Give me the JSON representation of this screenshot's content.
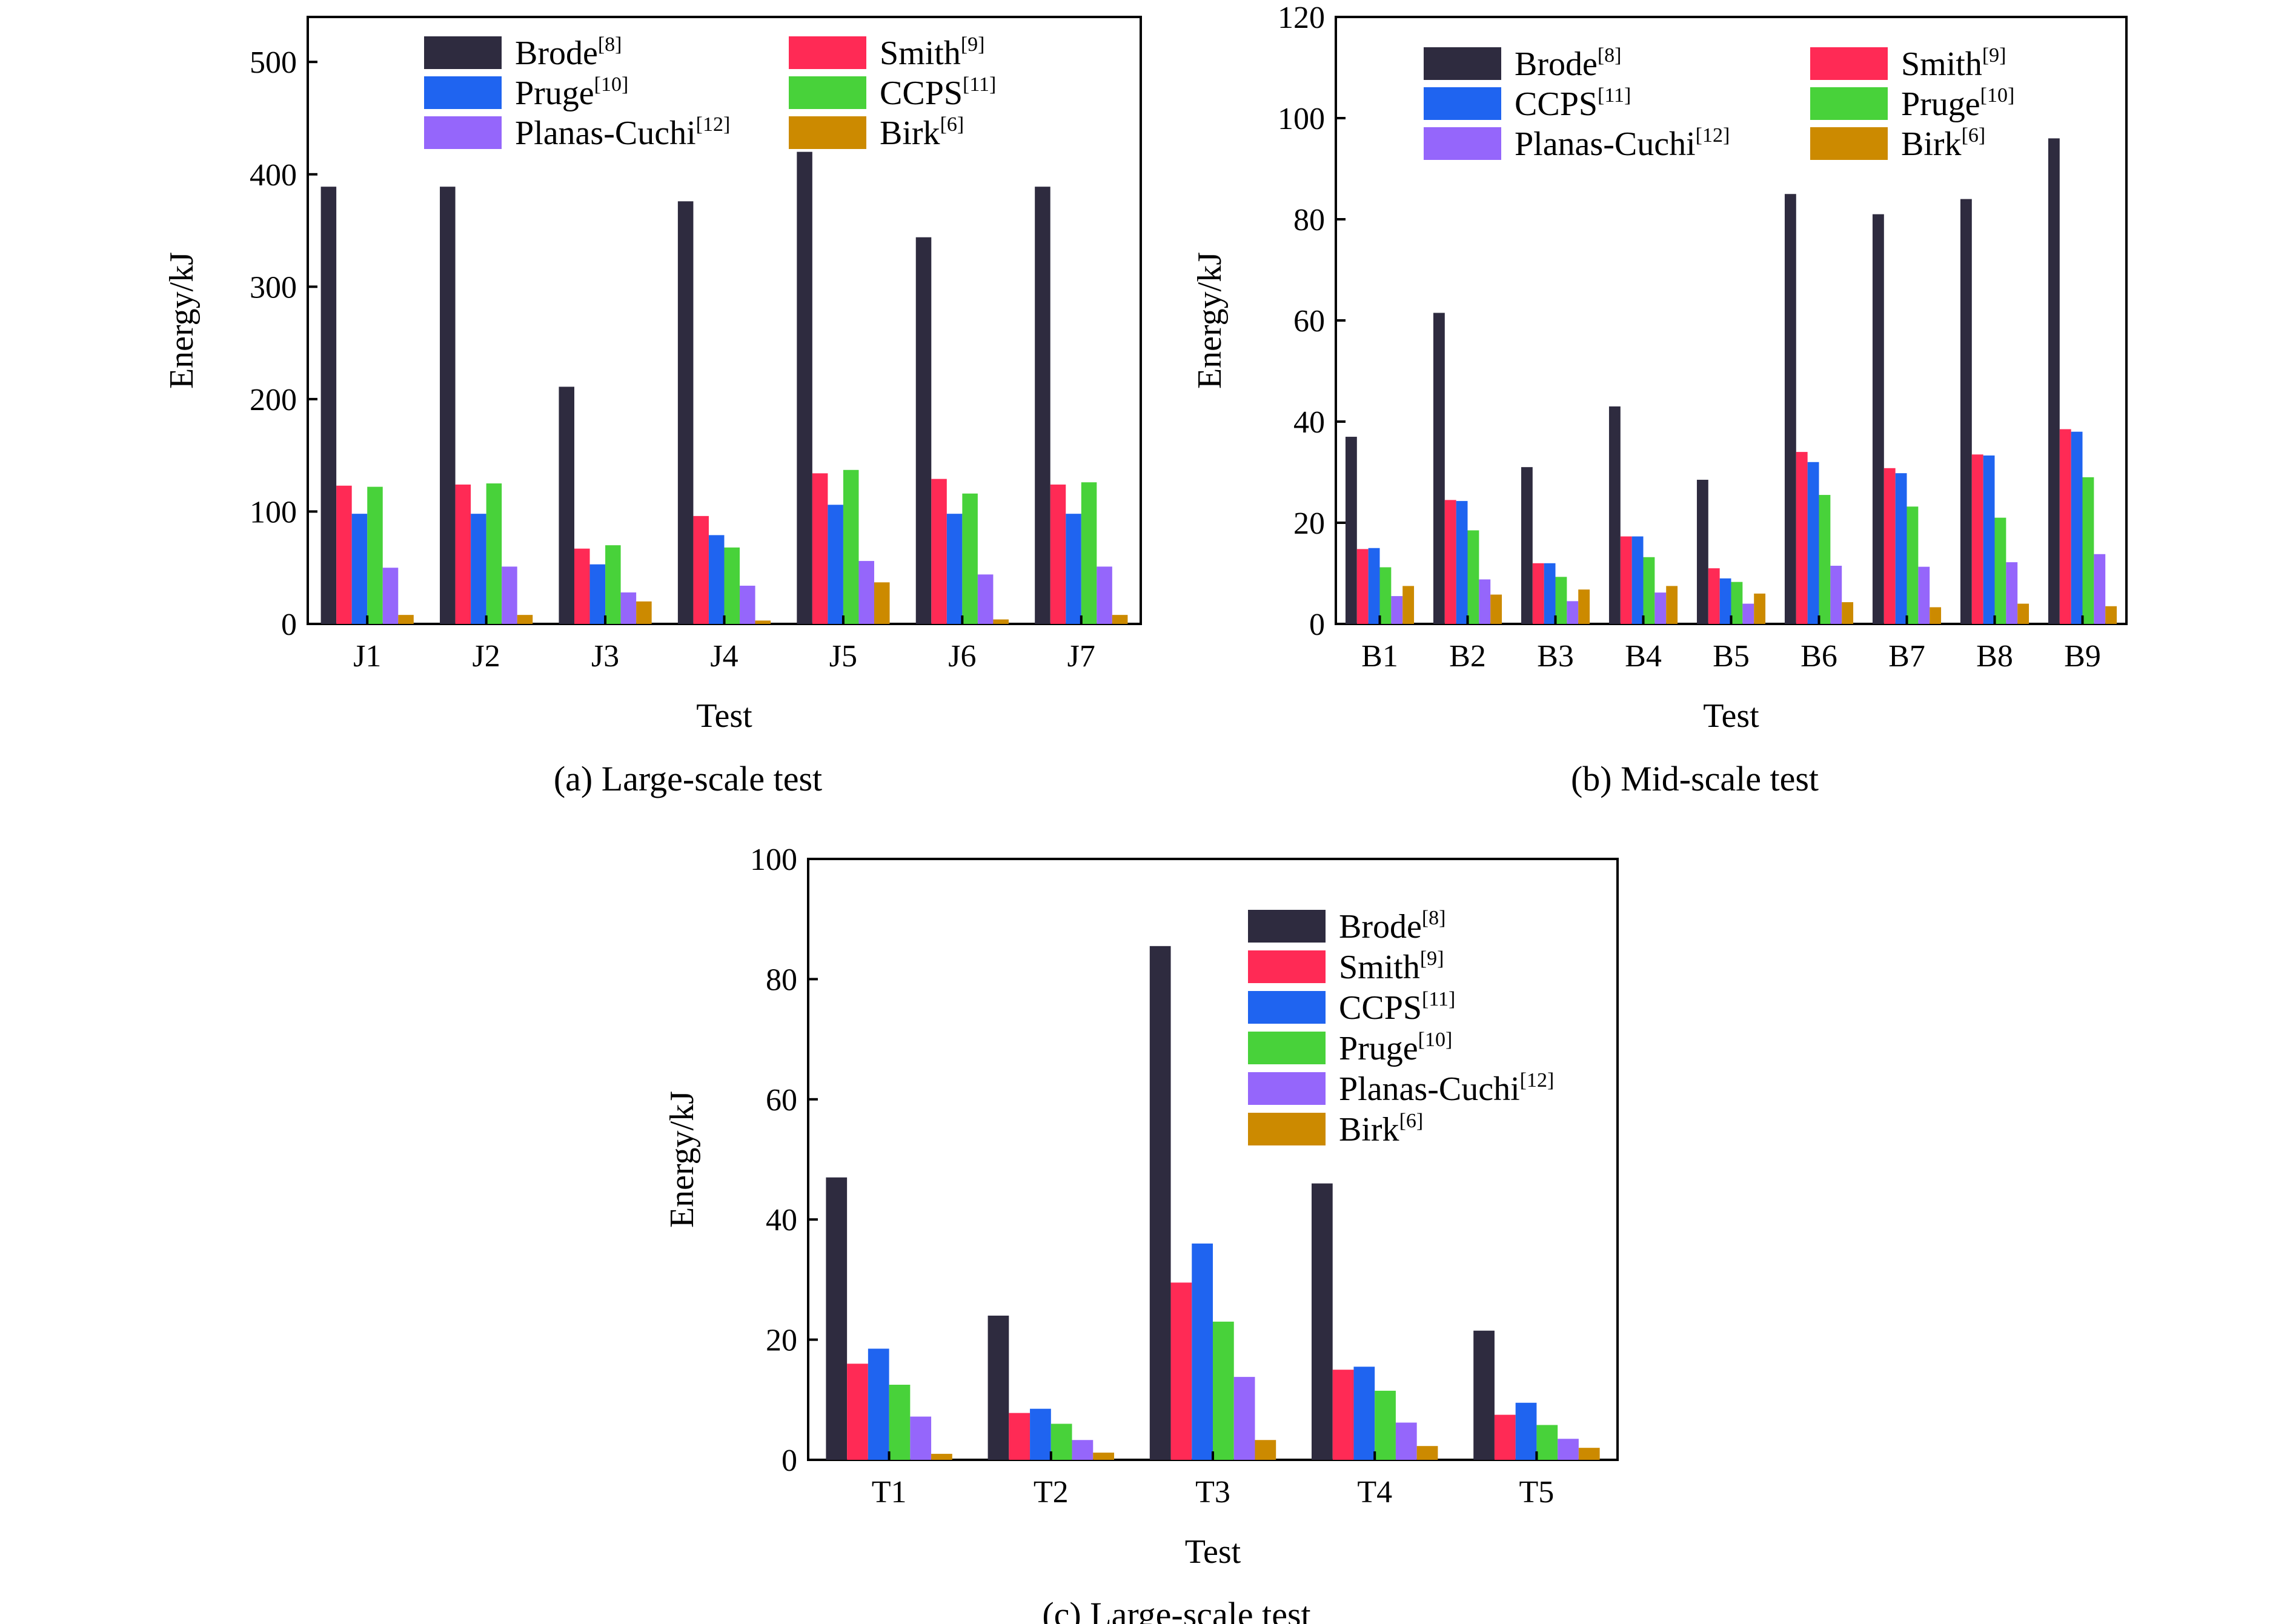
{
  "chart_data": [
    {
      "id": "a",
      "type": "bar",
      "caption": "(a) Large-scale test",
      "xlabel": "Test",
      "ylabel": "Energy/kJ",
      "ylim": [
        0,
        540
      ],
      "yticks": [
        0,
        100,
        200,
        300,
        400,
        500
      ],
      "categories": [
        "J1",
        "J2",
        "J3",
        "J4",
        "J5",
        "J6",
        "J7"
      ],
      "legend": {
        "columns": 2,
        "placement": "top-right",
        "order": [
          "Brode",
          "Smith",
          "Pruge",
          "CCPS",
          "Planas-Cuchi",
          "Birk"
        ]
      },
      "series": [
        {
          "name": "Brode",
          "ref": "[8]",
          "color": "#2e2b3f",
          "values": [
            389,
            389,
            211,
            376,
            420,
            344,
            389
          ]
        },
        {
          "name": "Smith",
          "ref": "[9]",
          "color": "#ff2a55",
          "values": [
            123,
            124,
            67,
            96,
            134,
            129,
            124
          ]
        },
        {
          "name": "Pruge",
          "ref": "[10]",
          "color": "#1f64f0",
          "values": [
            98,
            98,
            53,
            79,
            106,
            98,
            98
          ]
        },
        {
          "name": "CCPS",
          "ref": "[11]",
          "color": "#48d23a",
          "values": [
            122,
            125,
            70,
            68,
            137,
            116,
            126
          ]
        },
        {
          "name": "Planas-Cuchi",
          "ref": "[12]",
          "color": "#9566fb",
          "values": [
            50,
            51,
            28,
            34,
            56,
            44,
            51
          ]
        },
        {
          "name": "Birk",
          "ref": "[6]",
          "color": "#cc8a00",
          "values": [
            8,
            8,
            20,
            3,
            37,
            4,
            8
          ]
        }
      ]
    },
    {
      "id": "b",
      "type": "bar",
      "caption": "(b) Mid-scale test",
      "xlabel": "Test",
      "ylabel": "Energy/kJ",
      "ylim": [
        0,
        120
      ],
      "yticks": [
        0,
        20,
        40,
        60,
        80,
        100,
        120
      ],
      "categories": [
        "B1",
        "B2",
        "B3",
        "B4",
        "B5",
        "B6",
        "B7",
        "B8",
        "B9"
      ],
      "legend": {
        "columns": 2,
        "placement": "top",
        "order": [
          "Brode",
          "Smith",
          "CCPS",
          "Pruge",
          "Planas-Cuchi",
          "Birk"
        ]
      },
      "series": [
        {
          "name": "Brode",
          "ref": "[8]",
          "color": "#2e2b3f",
          "values": [
            37,
            61.5,
            31,
            43,
            28.5,
            85,
            81,
            84,
            96
          ]
        },
        {
          "name": "Smith",
          "ref": "[9]",
          "color": "#ff2a55",
          "values": [
            14.8,
            24.5,
            12,
            17.3,
            11,
            34,
            30.8,
            33.5,
            38.5
          ]
        },
        {
          "name": "CCPS",
          "ref": "[11]",
          "color": "#1f64f0",
          "values": [
            15,
            24.3,
            12,
            17.3,
            9,
            32,
            29.8,
            33.3,
            38
          ]
        },
        {
          "name": "Pruge",
          "ref": "[10]",
          "color": "#48d23a",
          "values": [
            11.2,
            18.5,
            9.3,
            13.2,
            8.3,
            25.5,
            23.2,
            21,
            29
          ]
        },
        {
          "name": "Planas-Cuchi",
          "ref": "[12]",
          "color": "#9566fb",
          "values": [
            5.5,
            8.8,
            4.5,
            6.2,
            4,
            11.5,
            11.3,
            12.2,
            13.8
          ]
        },
        {
          "name": "Birk",
          "ref": "[6]",
          "color": "#cc8a00",
          "values": [
            7.5,
            5.8,
            6.8,
            7.5,
            6,
            4.3,
            3.3,
            4,
            3.5
          ]
        }
      ]
    },
    {
      "id": "c",
      "type": "bar",
      "caption": "(c) Large-scale test",
      "xlabel": "Test",
      "ylabel": "Energy/kJ",
      "ylim": [
        0,
        100
      ],
      "yticks": [
        0,
        20,
        40,
        60,
        80,
        100
      ],
      "categories": [
        "T1",
        "T2",
        "T3",
        "T4",
        "T5"
      ],
      "legend": {
        "columns": 1,
        "placement": "top-right",
        "order": [
          "Brode",
          "Smith",
          "CCPS",
          "Pruge",
          "Planas-Cuchi",
          "Birk"
        ]
      },
      "series": [
        {
          "name": "Brode",
          "ref": "[8]",
          "color": "#2e2b3f",
          "values": [
            47,
            24,
            85.5,
            46,
            21.5
          ]
        },
        {
          "name": "Smith",
          "ref": "[9]",
          "color": "#ff2a55",
          "values": [
            16,
            7.8,
            29.5,
            15,
            7.5
          ]
        },
        {
          "name": "CCPS",
          "ref": "[11]",
          "color": "#1f64f0",
          "values": [
            18.5,
            8.5,
            36,
            15.5,
            9.5
          ]
        },
        {
          "name": "Pruge",
          "ref": "[10]",
          "color": "#48d23a",
          "values": [
            12.5,
            6,
            23,
            11.5,
            5.8
          ]
        },
        {
          "name": "Planas-Cuchi",
          "ref": "[12]",
          "color": "#9566fb",
          "values": [
            7.2,
            3.3,
            13.8,
            6.2,
            3.5
          ]
        },
        {
          "name": "Birk",
          "ref": "[6]",
          "color": "#cc8a00",
          "values": [
            1,
            1.2,
            3.3,
            2.3,
            2
          ]
        }
      ]
    }
  ]
}
